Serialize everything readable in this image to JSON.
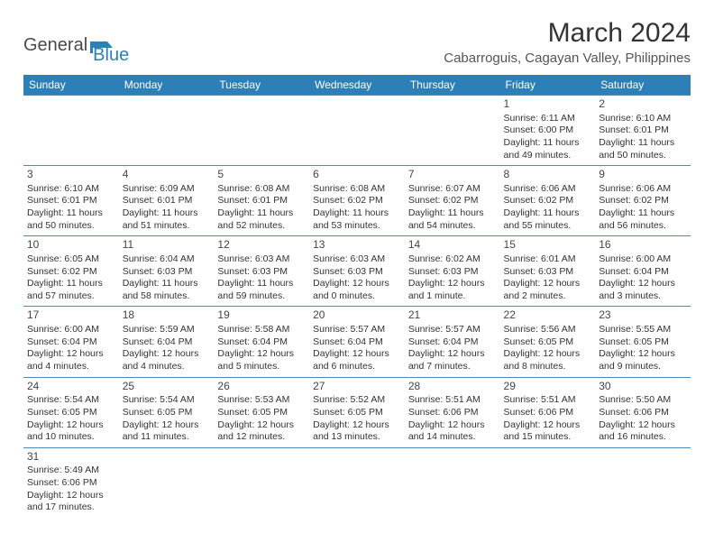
{
  "logo": {
    "text1": "General",
    "text2": "Blue"
  },
  "title": "March 2024",
  "location": "Cabarroguis, Cagayan Valley, Philippines",
  "colors": {
    "header_bg": "#2d7fb8",
    "header_text": "#ffffff",
    "cell_border": "#4a8bbf",
    "text": "#333333",
    "logo_gray": "#4a4a4a",
    "logo_blue": "#2d7fb8"
  },
  "days": [
    "Sunday",
    "Monday",
    "Tuesday",
    "Wednesday",
    "Thursday",
    "Friday",
    "Saturday"
  ],
  "weeks": [
    [
      null,
      null,
      null,
      null,
      null,
      {
        "n": "1",
        "sr": "Sunrise: 6:11 AM",
        "ss": "Sunset: 6:00 PM",
        "dl": "Daylight: 11 hours and 49 minutes."
      },
      {
        "n": "2",
        "sr": "Sunrise: 6:10 AM",
        "ss": "Sunset: 6:01 PM",
        "dl": "Daylight: 11 hours and 50 minutes."
      }
    ],
    [
      {
        "n": "3",
        "sr": "Sunrise: 6:10 AM",
        "ss": "Sunset: 6:01 PM",
        "dl": "Daylight: 11 hours and 50 minutes."
      },
      {
        "n": "4",
        "sr": "Sunrise: 6:09 AM",
        "ss": "Sunset: 6:01 PM",
        "dl": "Daylight: 11 hours and 51 minutes."
      },
      {
        "n": "5",
        "sr": "Sunrise: 6:08 AM",
        "ss": "Sunset: 6:01 PM",
        "dl": "Daylight: 11 hours and 52 minutes."
      },
      {
        "n": "6",
        "sr": "Sunrise: 6:08 AM",
        "ss": "Sunset: 6:02 PM",
        "dl": "Daylight: 11 hours and 53 minutes."
      },
      {
        "n": "7",
        "sr": "Sunrise: 6:07 AM",
        "ss": "Sunset: 6:02 PM",
        "dl": "Daylight: 11 hours and 54 minutes."
      },
      {
        "n": "8",
        "sr": "Sunrise: 6:06 AM",
        "ss": "Sunset: 6:02 PM",
        "dl": "Daylight: 11 hours and 55 minutes."
      },
      {
        "n": "9",
        "sr": "Sunrise: 6:06 AM",
        "ss": "Sunset: 6:02 PM",
        "dl": "Daylight: 11 hours and 56 minutes."
      }
    ],
    [
      {
        "n": "10",
        "sr": "Sunrise: 6:05 AM",
        "ss": "Sunset: 6:02 PM",
        "dl": "Daylight: 11 hours and 57 minutes."
      },
      {
        "n": "11",
        "sr": "Sunrise: 6:04 AM",
        "ss": "Sunset: 6:03 PM",
        "dl": "Daylight: 11 hours and 58 minutes."
      },
      {
        "n": "12",
        "sr": "Sunrise: 6:03 AM",
        "ss": "Sunset: 6:03 PM",
        "dl": "Daylight: 11 hours and 59 minutes."
      },
      {
        "n": "13",
        "sr": "Sunrise: 6:03 AM",
        "ss": "Sunset: 6:03 PM",
        "dl": "Daylight: 12 hours and 0 minutes."
      },
      {
        "n": "14",
        "sr": "Sunrise: 6:02 AM",
        "ss": "Sunset: 6:03 PM",
        "dl": "Daylight: 12 hours and 1 minute."
      },
      {
        "n": "15",
        "sr": "Sunrise: 6:01 AM",
        "ss": "Sunset: 6:03 PM",
        "dl": "Daylight: 12 hours and 2 minutes."
      },
      {
        "n": "16",
        "sr": "Sunrise: 6:00 AM",
        "ss": "Sunset: 6:04 PM",
        "dl": "Daylight: 12 hours and 3 minutes."
      }
    ],
    [
      {
        "n": "17",
        "sr": "Sunrise: 6:00 AM",
        "ss": "Sunset: 6:04 PM",
        "dl": "Daylight: 12 hours and 4 minutes."
      },
      {
        "n": "18",
        "sr": "Sunrise: 5:59 AM",
        "ss": "Sunset: 6:04 PM",
        "dl": "Daylight: 12 hours and 4 minutes."
      },
      {
        "n": "19",
        "sr": "Sunrise: 5:58 AM",
        "ss": "Sunset: 6:04 PM",
        "dl": "Daylight: 12 hours and 5 minutes."
      },
      {
        "n": "20",
        "sr": "Sunrise: 5:57 AM",
        "ss": "Sunset: 6:04 PM",
        "dl": "Daylight: 12 hours and 6 minutes."
      },
      {
        "n": "21",
        "sr": "Sunrise: 5:57 AM",
        "ss": "Sunset: 6:04 PM",
        "dl": "Daylight: 12 hours and 7 minutes."
      },
      {
        "n": "22",
        "sr": "Sunrise: 5:56 AM",
        "ss": "Sunset: 6:05 PM",
        "dl": "Daylight: 12 hours and 8 minutes."
      },
      {
        "n": "23",
        "sr": "Sunrise: 5:55 AM",
        "ss": "Sunset: 6:05 PM",
        "dl": "Daylight: 12 hours and 9 minutes."
      }
    ],
    [
      {
        "n": "24",
        "sr": "Sunrise: 5:54 AM",
        "ss": "Sunset: 6:05 PM",
        "dl": "Daylight: 12 hours and 10 minutes."
      },
      {
        "n": "25",
        "sr": "Sunrise: 5:54 AM",
        "ss": "Sunset: 6:05 PM",
        "dl": "Daylight: 12 hours and 11 minutes."
      },
      {
        "n": "26",
        "sr": "Sunrise: 5:53 AM",
        "ss": "Sunset: 6:05 PM",
        "dl": "Daylight: 12 hours and 12 minutes."
      },
      {
        "n": "27",
        "sr": "Sunrise: 5:52 AM",
        "ss": "Sunset: 6:05 PM",
        "dl": "Daylight: 12 hours and 13 minutes."
      },
      {
        "n": "28",
        "sr": "Sunrise: 5:51 AM",
        "ss": "Sunset: 6:06 PM",
        "dl": "Daylight: 12 hours and 14 minutes."
      },
      {
        "n": "29",
        "sr": "Sunrise: 5:51 AM",
        "ss": "Sunset: 6:06 PM",
        "dl": "Daylight: 12 hours and 15 minutes."
      },
      {
        "n": "30",
        "sr": "Sunrise: 5:50 AM",
        "ss": "Sunset: 6:06 PM",
        "dl": "Daylight: 12 hours and 16 minutes."
      }
    ],
    [
      {
        "n": "31",
        "sr": "Sunrise: 5:49 AM",
        "ss": "Sunset: 6:06 PM",
        "dl": "Daylight: 12 hours and 17 minutes."
      },
      null,
      null,
      null,
      null,
      null,
      null
    ]
  ]
}
